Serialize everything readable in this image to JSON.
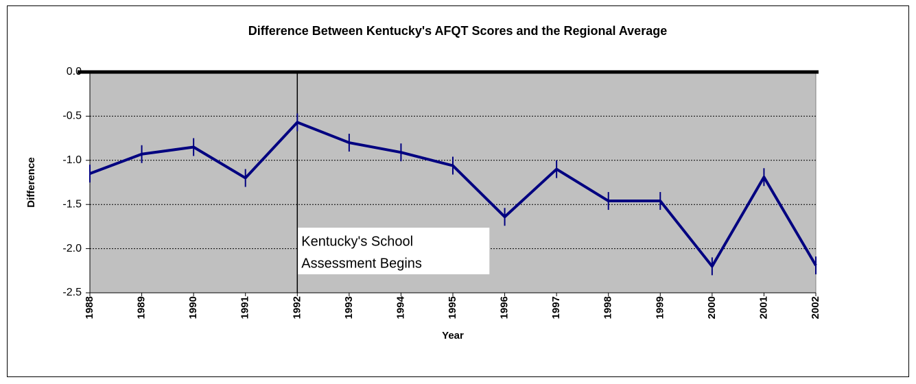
{
  "chart_data": {
    "type": "line",
    "title": "Difference Between Kentucky's AFQT Scores and the Regional Average",
    "x_label": "Year",
    "y_label": "Difference",
    "categories": [
      "1988",
      "1989",
      "1990",
      "1991",
      "1992",
      "1993",
      "1994",
      "1995",
      "1996",
      "1997",
      "1998",
      "1999",
      "2000",
      "2001",
      "2002"
    ],
    "series": [
      {
        "name": "Difference",
        "color": "#000080",
        "values": [
          -1.15,
          -0.93,
          -0.85,
          -1.2,
          -0.57,
          -0.8,
          -0.91,
          -1.06,
          -1.64,
          -1.1,
          -1.46,
          -1.46,
          -2.2,
          -1.19,
          -2.19
        ]
      }
    ],
    "ylim": [
      -2.5,
      0
    ],
    "yticks": [
      {
        "value": 0,
        "label": "0.0"
      },
      -0.5,
      {
        "value": -1,
        "label": "-1.0"
      },
      -1.5,
      {
        "value": -2,
        "label": "-2.0"
      },
      -2.5
    ],
    "grid": true,
    "plot_background": "#c0c0c0",
    "annotation": {
      "x": "1992",
      "lines": [
        "Kentucky's School",
        "Assessment Begins"
      ]
    }
  }
}
